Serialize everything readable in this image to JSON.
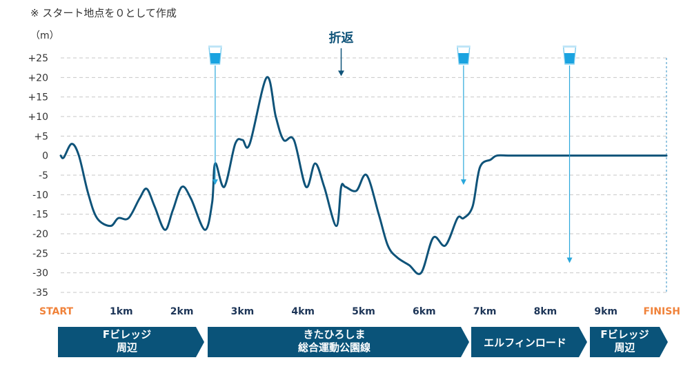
{
  "note": "※ スタート地点を０として作成",
  "colors": {
    "line": "#0f5379",
    "grid": "#c7c7c7",
    "arrow": "#29a7db",
    "band": "#0a5379",
    "start_finish": "#f0823a",
    "tick_label": "#1d3557"
  },
  "icons": {
    "water": "water-cup-icon"
  },
  "chart_data": {
    "type": "line",
    "ylabel": "（m）",
    "ylim": [
      -35,
      25
    ],
    "yticks": [
      "+25",
      "+20",
      "+15",
      "+10",
      "+5",
      "0",
      "-5",
      "-10",
      "-15",
      "-20",
      "-25",
      "-30",
      "-35"
    ],
    "ytick_values": [
      25,
      20,
      15,
      10,
      5,
      0,
      -5,
      -10,
      -15,
      -20,
      -25,
      -30,
      -35
    ],
    "xlim": [
      0,
      10
    ],
    "xticks": [
      "START",
      "1km",
      "2km",
      "3km",
      "4km",
      "5km",
      "6km",
      "7km",
      "8km",
      "9km",
      "FINISH"
    ],
    "xtick_values": [
      0,
      1,
      2,
      3,
      4,
      5,
      6,
      7,
      8,
      9,
      10
    ],
    "grid": true,
    "series": [
      {
        "x": [
          0,
          0.05,
          0.18,
          0.3,
          0.45,
          0.6,
          0.82,
          0.95,
          1.12,
          1.3,
          1.42,
          1.55,
          1.72,
          1.85,
          2.0,
          2.15,
          2.38,
          2.5,
          2.55,
          2.7,
          2.88,
          3.0,
          3.12,
          3.4,
          3.55,
          3.68,
          3.85,
          4.05,
          4.2,
          4.35,
          4.55,
          4.63,
          4.7,
          4.88,
          5.05,
          5.25,
          5.4,
          5.55,
          5.75,
          5.95,
          6.15,
          6.35,
          6.55,
          6.65,
          6.8,
          6.92,
          7.1,
          7.2,
          7.4,
          7.7,
          7.9,
          8.1,
          8.35,
          8.45,
          8.5,
          8.6,
          8.7,
          8.8,
          9.0,
          9.1,
          9.25,
          9.4,
          9.6,
          9.75,
          9.9,
          10.0
        ],
        "y": [
          0,
          -0.5,
          3,
          0,
          -9.5,
          -16,
          -18,
          -16,
          -16,
          -11,
          -8.5,
          -13,
          -19,
          -14,
          -8,
          -11,
          -19,
          -12,
          -2,
          -8,
          3,
          4,
          3,
          20,
          10,
          4,
          4,
          -8,
          -2,
          -8,
          -18,
          -8,
          -8,
          -9,
          -5,
          -15,
          -23,
          -26,
          -28,
          -30,
          -21,
          -23,
          -16,
          -16,
          -13,
          -3,
          -1,
          0,
          0,
          0,
          0,
          0,
          0,
          0,
          0,
          0,
          0,
          0,
          0,
          0,
          0,
          0,
          0,
          0,
          0,
          0
        ]
      }
    ],
    "title": "折返",
    "annotations": [
      {
        "text": "折返",
        "x": 4.63,
        "y": 20
      }
    ],
    "water_stations": [
      {
        "x": 2.55,
        "y": -7.5
      },
      {
        "x": 6.65,
        "y": -7.5
      },
      {
        "x": 8.4,
        "y": -27.5
      }
    ]
  },
  "sections": [
    {
      "lines": [
        "Fビレッジ",
        "周辺"
      ]
    },
    {
      "lines": [
        "きたひろしま",
        "総合運動公園線"
      ]
    },
    {
      "lines": [
        "エルフィンロード"
      ]
    },
    {
      "lines": [
        "Fビレッジ",
        "周辺"
      ]
    }
  ]
}
